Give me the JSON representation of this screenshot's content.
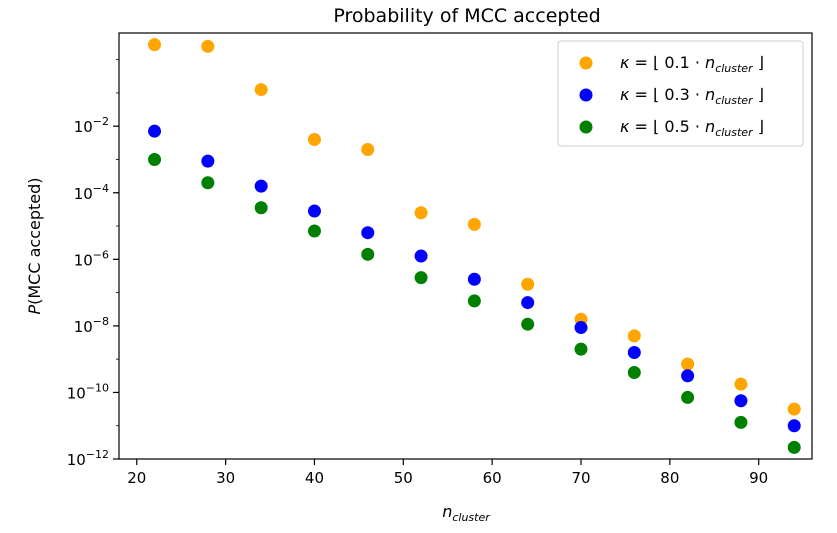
{
  "chart_data": {
    "type": "scatter",
    "title": "Probability of MCC accepted",
    "xlabel": {
      "base": "n",
      "sub": "cluster"
    },
    "ylabel": {
      "italic": "P",
      "rest": "(MCC accepted)"
    },
    "xlim": [
      18,
      96
    ],
    "ylim_log10": [
      -12,
      0.8
    ],
    "yscale": "log",
    "x_ticks": [
      20,
      30,
      40,
      50,
      60,
      70,
      80,
      90
    ],
    "y_ticks": [
      {
        "exp": -2,
        "label_base": "10",
        "label_exp": "−2"
      },
      {
        "exp": -4,
        "label_base": "10",
        "label_exp": "−4"
      },
      {
        "exp": -6,
        "label_base": "10",
        "label_exp": "−6"
      },
      {
        "exp": -8,
        "label_base": "10",
        "label_exp": "−8"
      },
      {
        "exp": -10,
        "label_base": "10",
        "label_exp": "−10"
      },
      {
        "exp": -12,
        "label_base": "10",
        "label_exp": "−12"
      }
    ],
    "x": [
      22,
      28,
      34,
      40,
      46,
      52,
      58,
      64,
      70,
      76,
      82,
      88,
      94
    ],
    "legend_position": "top-right",
    "series": [
      {
        "name": "κ = ⌊ 0.1 · n_cluster ⌋",
        "legend": {
          "kappa": "κ",
          "eq": " = ⌊ 0.1  · ",
          "n": "n",
          "sub": "cluster",
          "end": " ⌋"
        },
        "color": "#ffa500",
        "log10_values": [
          0.45,
          0.4,
          -0.9,
          -2.4,
          -2.7,
          -4.6,
          -4.95,
          -6.75,
          -7.8,
          -8.3,
          -9.15,
          -9.75,
          -10.5
        ]
      },
      {
        "name": "κ = ⌊ 0.3 · n_cluster ⌋",
        "legend": {
          "kappa": "κ",
          "eq": " = ⌊ 0.3 · ",
          "n": "n",
          "sub": "cluster",
          "end": " ⌋"
        },
        "color": "#0000ff",
        "log10_values": [
          -2.15,
          -3.05,
          -3.8,
          -4.55,
          -5.2,
          -5.9,
          -6.6,
          -7.3,
          -8.05,
          -8.8,
          -9.5,
          -10.25,
          -11.0
        ]
      },
      {
        "name": "κ = ⌊ 0.5 · n_cluster ⌋",
        "legend": {
          "kappa": "κ",
          "eq": " = ⌊ 0.5 · ",
          "n": "n",
          "sub": "cluster",
          "end": " ⌋"
        },
        "color": "#008000",
        "log10_values": [
          -3.0,
          -3.7,
          -4.45,
          -5.15,
          -5.85,
          -6.55,
          -7.25,
          -7.95,
          -8.7,
          -9.4,
          -10.15,
          -10.9,
          -11.65
        ]
      }
    ]
  }
}
